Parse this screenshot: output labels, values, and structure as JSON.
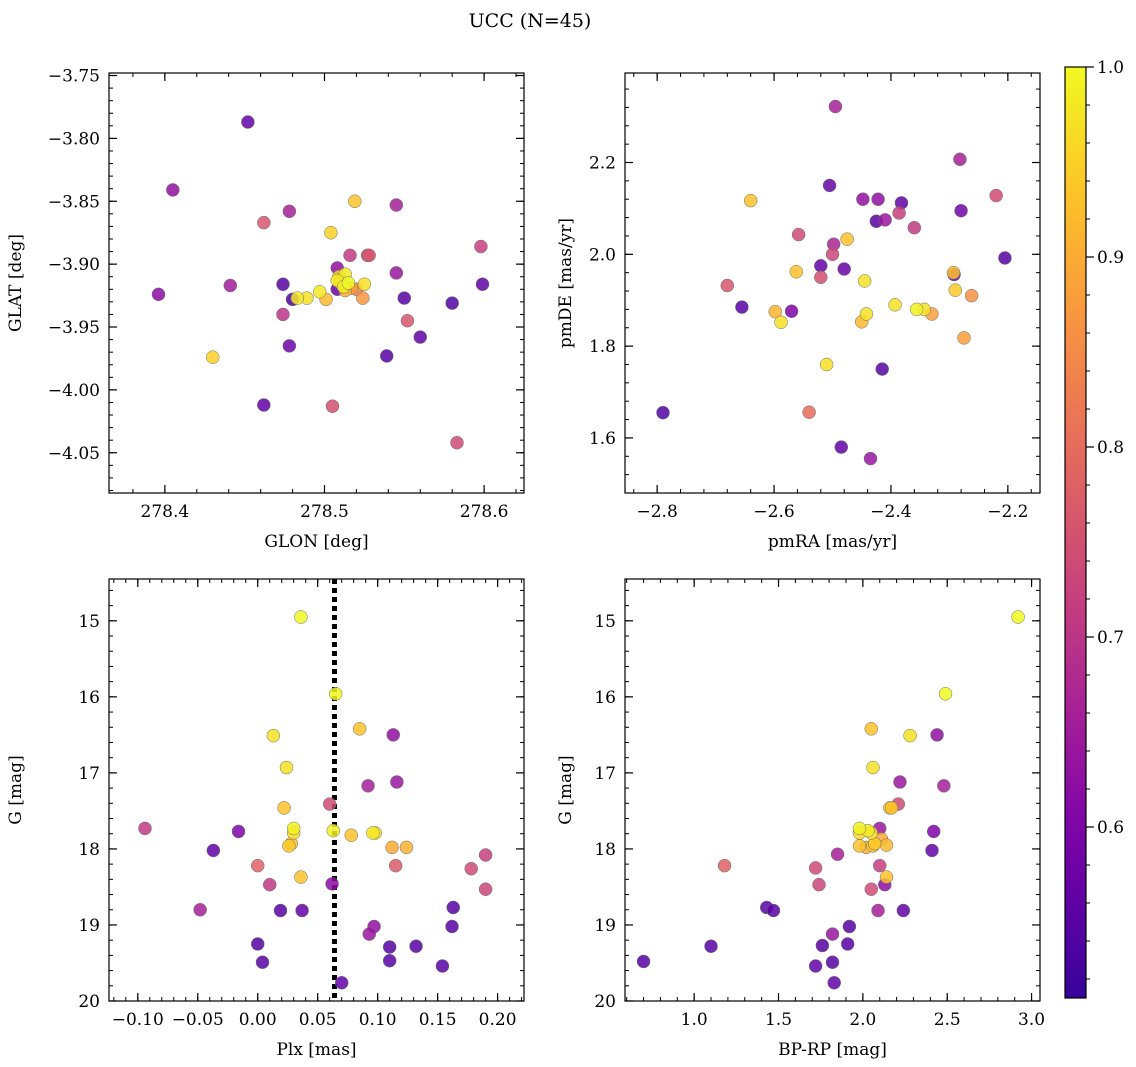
{
  "figure": {
    "title": "UCC (N=45)"
  },
  "colorbar": {
    "min": 0.51,
    "max": 1.0,
    "ticks": [
      0.6,
      0.7,
      0.8,
      0.9,
      1.0
    ],
    "tick_labels": [
      "0.6",
      "0.7",
      "0.8",
      "0.9",
      "1.0"
    ],
    "palette": "plasma"
  },
  "chart_data": [
    {
      "type": "scatter",
      "id": "glon-glat",
      "xlabel": "GLON [deg]",
      "ylabel": "GLAT [deg]",
      "xlim": [
        278.365,
        278.625
      ],
      "ylim": [
        -4.082,
        -3.748
      ],
      "xticks": [
        278.4,
        278.5,
        278.6
      ],
      "xtick_labels": [
        "278.4",
        "278.5",
        "278.6"
      ],
      "yticks": [
        -3.75,
        -3.8,
        -3.85,
        -3.9,
        -3.95,
        -4.0,
        -4.05
      ],
      "ytick_labels": [
        "−3.75",
        "−3.80",
        "−3.85",
        "−3.90",
        "−3.95",
        "−4.00",
        "−4.05"
      ],
      "x": [
        278.396,
        278.405,
        278.452,
        278.441,
        278.462,
        278.478,
        278.462,
        278.474,
        278.474,
        278.478,
        278.48,
        278.483,
        278.489,
        278.497,
        278.501,
        278.504,
        278.505,
        278.508,
        278.508,
        278.509,
        278.51,
        278.512,
        278.513,
        278.513,
        278.515,
        278.517,
        278.516,
        278.519,
        278.52,
        278.527,
        278.525,
        278.528,
        278.524,
        278.545,
        278.545,
        278.55,
        278.552,
        278.539,
        278.56,
        278.58,
        278.583,
        278.598,
        278.599,
        278.43,
        278.508
      ],
      "y": [
        -3.924,
        -3.841,
        -3.787,
        -3.917,
        -3.867,
        -3.858,
        -4.012,
        -3.916,
        -3.94,
        -3.965,
        -3.928,
        -3.927,
        -3.927,
        -3.922,
        -3.928,
        -3.875,
        -4.013,
        -3.903,
        -3.92,
        -3.91,
        -3.915,
        -3.918,
        -3.908,
        -3.921,
        -3.915,
        -3.919,
        -3.893,
        -3.85,
        -3.92,
        -3.893,
        -3.916,
        -3.893,
        -3.927,
        -3.853,
        -3.907,
        -3.927,
        -3.945,
        -3.973,
        -3.958,
        -3.931,
        -4.042,
        -3.886,
        -3.916,
        -3.974,
        -3.913
      ],
      "c": [
        0.62,
        0.63,
        0.56,
        0.65,
        0.76,
        0.66,
        0.56,
        0.55,
        0.7,
        0.58,
        0.53,
        0.98,
        0.97,
        0.98,
        0.92,
        0.95,
        0.75,
        0.63,
        0.57,
        0.96,
        0.97,
        0.99,
        0.98,
        0.9,
        1.0,
        0.88,
        0.71,
        0.93,
        0.84,
        0.73,
        0.97,
        0.76,
        0.87,
        0.66,
        0.64,
        0.55,
        0.76,
        0.55,
        0.56,
        0.54,
        0.74,
        0.72,
        0.56,
        0.95,
        0.98
      ]
    },
    {
      "type": "scatter",
      "id": "pm",
      "xlabel": "pmRA [mas/yr]",
      "ylabel": "pmDE [mas/yr]",
      "xlim": [
        -2.855,
        -2.145
      ],
      "ylim": [
        1.48,
        2.395
      ],
      "xticks": [
        -2.8,
        -2.6,
        -2.4,
        -2.2
      ],
      "xtick_labels": [
        "−2.8",
        "−2.6",
        "−2.4",
        "−2.2"
      ],
      "yticks": [
        1.6,
        1.8,
        2.0,
        2.2
      ],
      "ytick_labels": [
        "1.6",
        "1.8",
        "2.0",
        "2.2"
      ],
      "x": [
        -2.79,
        -2.68,
        -2.655,
        -2.64,
        -2.598,
        -2.588,
        -2.57,
        -2.562,
        -2.558,
        -2.54,
        -2.52,
        -2.52,
        -2.51,
        -2.505,
        -2.5,
        -2.498,
        -2.495,
        -2.485,
        -2.48,
        -2.475,
        -2.45,
        -2.448,
        -2.445,
        -2.442,
        -2.435,
        -2.425,
        -2.422,
        -2.415,
        -2.41,
        -2.393,
        -2.386,
        -2.382,
        -2.36,
        -2.356,
        -2.343,
        -2.33,
        -2.293,
        -2.292,
        -2.29,
        -2.282,
        -2.28,
        -2.275,
        -2.262,
        -2.22,
        -2.205
      ],
      "y": [
        1.655,
        1.932,
        1.885,
        2.117,
        1.875,
        1.852,
        1.876,
        1.962,
        2.043,
        1.656,
        1.975,
        1.95,
        1.76,
        2.15,
        2.0,
        2.022,
        2.322,
        1.58,
        1.968,
        2.033,
        1.853,
        2.12,
        1.942,
        1.87,
        1.555,
        2.072,
        2.12,
        1.75,
        2.075,
        1.89,
        2.09,
        2.112,
        2.058,
        1.88,
        1.88,
        1.87,
        1.96,
        1.956,
        1.922,
        2.207,
        2.095,
        1.818,
        1.91,
        2.128,
        1.992
      ],
      "c": [
        0.54,
        0.76,
        0.55,
        0.93,
        0.91,
        0.97,
        0.6,
        0.93,
        0.74,
        0.8,
        0.56,
        0.75,
        0.97,
        0.57,
        0.73,
        0.67,
        0.66,
        0.56,
        0.57,
        0.93,
        0.92,
        0.63,
        0.97,
        0.97,
        0.64,
        0.55,
        0.63,
        0.55,
        0.64,
        0.97,
        0.72,
        0.56,
        0.71,
        0.99,
        0.97,
        0.88,
        0.93,
        0.56,
        0.94,
        0.66,
        0.58,
        0.88,
        0.86,
        0.74,
        0.55
      ]
    },
    {
      "type": "scatter",
      "id": "plx-g",
      "xlabel": "Plx [mas]",
      "ylabel": "G [mag]",
      "xlim": [
        -0.124,
        0.222
      ],
      "ylim": [
        20.0,
        14.45
      ],
      "y_inverted": true,
      "xticks": [
        -0.1,
        -0.05,
        0.0,
        0.05,
        0.1,
        0.15,
        0.2
      ],
      "xtick_labels": [
        "−0.10",
        "−0.05",
        "0.00",
        "0.05",
        "0.10",
        "0.15",
        "0.20"
      ],
      "yticks": [
        15,
        16,
        17,
        18,
        19,
        20
      ],
      "ytick_labels": [
        "15",
        "16",
        "17",
        "18",
        "19",
        "20"
      ],
      "vline": {
        "x": 0.064,
        "style": "dotted"
      },
      "x": [
        -0.094,
        -0.048,
        -0.037,
        -0.016,
        0.0,
        0.0,
        0.004,
        0.01,
        0.013,
        0.019,
        0.022,
        0.024,
        0.026,
        0.028,
        0.03,
        0.03,
        0.036,
        0.036,
        0.037,
        0.06,
        0.062,
        0.063,
        0.065,
        0.07,
        0.078,
        0.085,
        0.092,
        0.093,
        0.096,
        0.097,
        0.098,
        0.11,
        0.11,
        0.112,
        0.113,
        0.115,
        0.116,
        0.124,
        0.132,
        0.154,
        0.162,
        0.163,
        0.178,
        0.19,
        0.19
      ],
      "y": [
        17.73,
        18.8,
        18.02,
        17.77,
        18.22,
        19.25,
        19.49,
        18.47,
        16.51,
        18.81,
        17.46,
        16.93,
        17.96,
        17.93,
        17.73,
        17.79,
        14.95,
        18.37,
        18.81,
        17.41,
        18.46,
        17.76,
        15.96,
        19.76,
        17.82,
        16.42,
        17.17,
        19.12,
        17.79,
        19.02,
        17.79,
        19.29,
        19.47,
        17.98,
        16.5,
        18.22,
        17.12,
        17.98,
        19.28,
        19.54,
        19.02,
        18.77,
        18.26,
        18.53,
        18.08
      ],
      "c": [
        0.71,
        0.66,
        0.56,
        0.6,
        0.78,
        0.55,
        0.55,
        0.71,
        0.97,
        0.55,
        0.93,
        0.97,
        0.94,
        0.93,
        0.99,
        0.96,
        1.0,
        0.93,
        0.56,
        0.74,
        0.62,
        0.99,
        1.0,
        0.56,
        0.93,
        0.93,
        0.66,
        0.64,
        0.98,
        0.63,
        0.97,
        0.55,
        0.55,
        0.9,
        0.63,
        0.77,
        0.64,
        0.91,
        0.55,
        0.55,
        0.55,
        0.55,
        0.74,
        0.73,
        0.72
      ]
    },
    {
      "type": "scatter",
      "id": "cmd",
      "xlabel": "BP-RP [mag]",
      "ylabel": "G [mag]",
      "xlim": [
        0.59,
        3.05
      ],
      "ylim": [
        20.0,
        14.45
      ],
      "y_inverted": true,
      "xticks": [
        1.0,
        1.5,
        2.0,
        2.5,
        3.0
      ],
      "xtick_labels": [
        "1.0",
        "1.5",
        "2.0",
        "2.5",
        "3.0"
      ],
      "yticks": [
        15,
        16,
        17,
        18,
        19,
        20
      ],
      "ytick_labels": [
        "15",
        "16",
        "17",
        "18",
        "19",
        "20"
      ],
      "x": [
        0.7,
        1.1,
        1.18,
        1.43,
        1.47,
        1.72,
        1.72,
        1.74,
        1.76,
        1.82,
        1.82,
        1.83,
        1.85,
        1.91,
        1.92,
        1.98,
        1.98,
        1.98,
        2.02,
        2.03,
        2.05,
        2.05,
        2.05,
        2.06,
        2.06,
        2.07,
        2.07,
        2.09,
        2.1,
        2.1,
        2.11,
        2.13,
        2.14,
        2.14,
        2.16,
        2.17,
        2.21,
        2.22,
        2.24,
        2.28,
        2.41,
        2.42,
        2.44,
        2.48,
        2.49
      ],
      "y": [
        19.48,
        19.28,
        18.22,
        18.77,
        18.81,
        18.25,
        19.54,
        18.47,
        19.27,
        19.12,
        19.49,
        19.76,
        18.07,
        19.25,
        19.02,
        17.73,
        17.96,
        17.79,
        17.98,
        17.76,
        17.79,
        18.53,
        16.42,
        16.93,
        17.96,
        17.93,
        17.93,
        18.81,
        17.73,
        18.22,
        17.87,
        18.47,
        18.37,
        17.95,
        17.46,
        17.46,
        17.41,
        17.12,
        18.81,
        16.51,
        18.02,
        17.77,
        16.5,
        17.17,
        15.96
      ],
      "c": [
        0.55,
        0.55,
        0.78,
        0.55,
        0.55,
        0.74,
        0.56,
        0.73,
        0.55,
        0.64,
        0.55,
        0.56,
        0.66,
        0.55,
        0.55,
        0.99,
        0.93,
        0.96,
        0.91,
        0.98,
        0.97,
        0.74,
        0.93,
        0.97,
        0.93,
        0.94,
        0.93,
        0.66,
        0.64,
        0.72,
        0.9,
        0.62,
        0.93,
        0.92,
        0.93,
        0.93,
        0.74,
        0.64,
        0.56,
        0.97,
        0.56,
        0.6,
        0.63,
        0.66,
        1.0
      ]
    },
    {
      "type": "scatter",
      "id": "cmd-extra",
      "x": [
        2.92
      ],
      "y": [
        14.95
      ],
      "c": [
        1.0
      ]
    }
  ]
}
